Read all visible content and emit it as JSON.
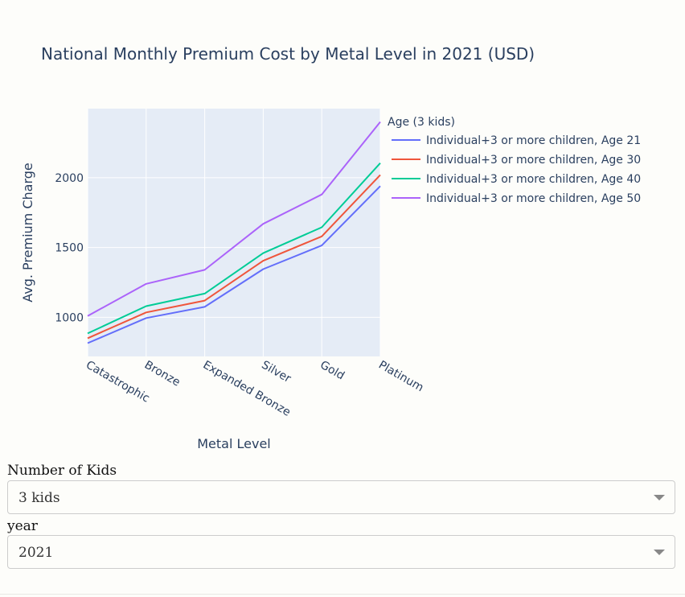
{
  "chart_data": {
    "type": "line",
    "title": "National Monthly Premium Cost by Metal Level in 2021 (USD)",
    "xlabel": "Metal Level",
    "ylabel": "Avg. Premium Charge",
    "categories": [
      "Catastrophic",
      "Bronze",
      "Expanded Bronze",
      "Silver",
      "Gold",
      "Platinum"
    ],
    "yticks": [
      1000,
      1500,
      2000
    ],
    "ylim": [
      720,
      2495
    ],
    "grid": true,
    "legend": {
      "title": "Age (3 kids)",
      "placement": "right"
    },
    "series": [
      {
        "name": "Individual+3 or more children, Age 21",
        "color": "#636efa",
        "values": [
          815,
          995,
          1075,
          1345,
          1515,
          1940
        ]
      },
      {
        "name": "Individual+3 or more children, Age 30",
        "color": "#ef553b",
        "values": [
          850,
          1035,
          1120,
          1405,
          1580,
          2020
        ]
      },
      {
        "name": "Individual+3 or more children, Age 40",
        "color": "#00cc96",
        "values": [
          885,
          1080,
          1170,
          1460,
          1645,
          2105
        ]
      },
      {
        "name": "Individual+3 or more children, Age 50",
        "color": "#ab63fa",
        "values": [
          1010,
          1240,
          1340,
          1670,
          1880,
          2400
        ]
      }
    ]
  },
  "controls": {
    "kids": {
      "label": "Number of Kids",
      "value": "3 kids"
    },
    "year": {
      "label": "year",
      "value": "2021"
    }
  }
}
